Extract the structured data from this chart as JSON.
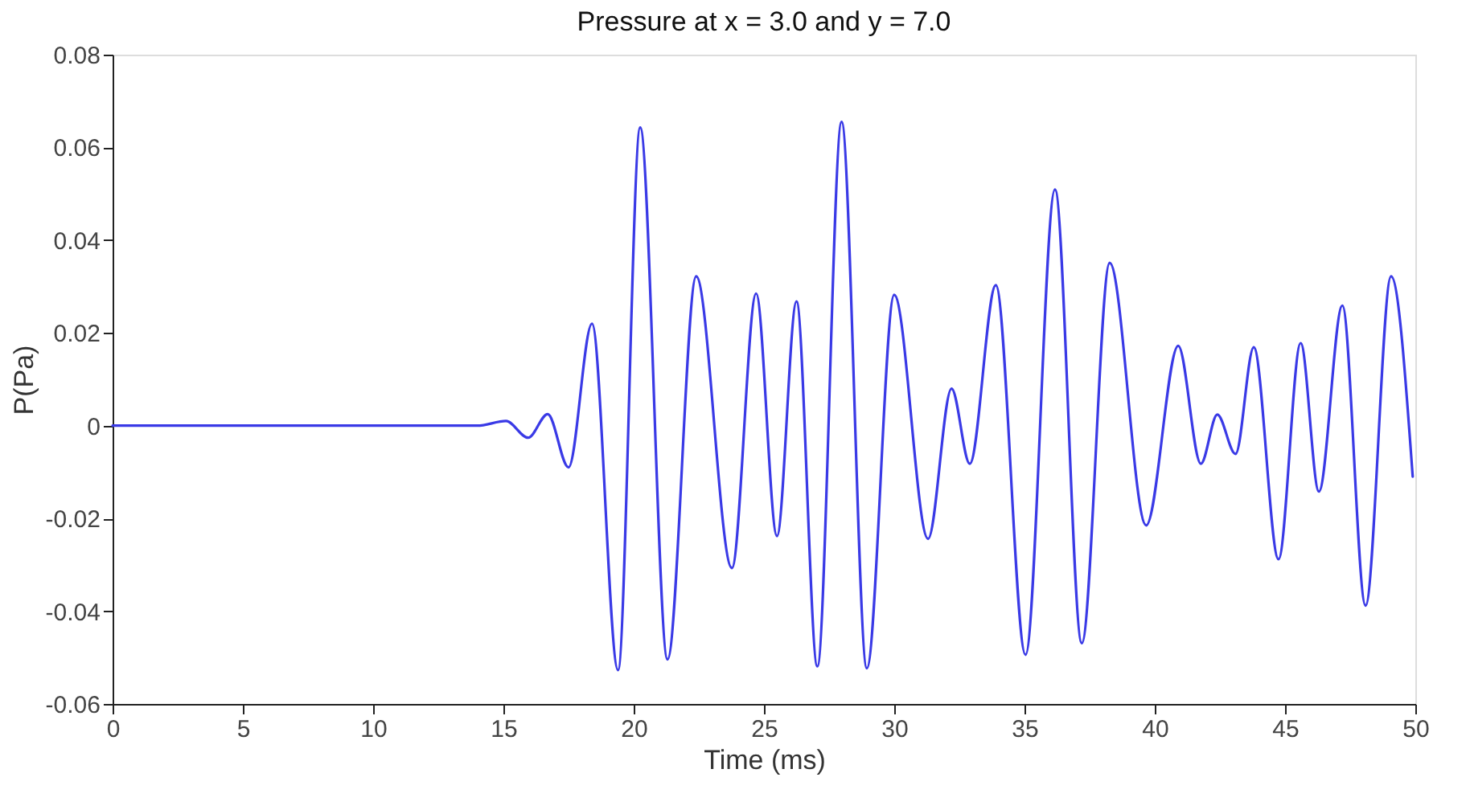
{
  "chart_data": {
    "type": "line",
    "title": "Pressure at x =  3.0 and y =  7.0",
    "xlabel": "Time (ms)",
    "ylabel": "P(Pa)",
    "xlim": [
      0,
      50
    ],
    "ylim": [
      -0.06,
      0.08
    ],
    "xticks": [
      0,
      5,
      10,
      15,
      20,
      25,
      30,
      35,
      40,
      45,
      50
    ],
    "yticks": [
      -0.06,
      -0.04,
      -0.02,
      0,
      0.02,
      0.04,
      0.06,
      0.08
    ],
    "grid": false,
    "marker": "none",
    "line_style": "solid",
    "series": [
      {
        "color": "#3a3ae6",
        "x": [
          0,
          13,
          14,
          15.1,
          15.95,
          16.7,
          17.5,
          18.4,
          19.4,
          20.25,
          21.3,
          22.4,
          23.77,
          24.7,
          25.5,
          26.25,
          27.05,
          27.98,
          28.95,
          30.0,
          31.3,
          32.2,
          32.9,
          33.9,
          35.04,
          36.17,
          37.2,
          38.27,
          39.67,
          40.9,
          41.77,
          42.4,
          43.1,
          43.8,
          44.75,
          45.6,
          46.3,
          47.2,
          48.09,
          49.07,
          49.9
        ],
        "values": [
          0,
          0,
          0,
          0.001,
          -0.0026,
          0.0025,
          -0.009,
          0.022,
          -0.0527,
          0.0643,
          -0.0504,
          0.0322,
          -0.0307,
          0.0285,
          -0.0238,
          0.0268,
          -0.0519,
          0.0655,
          -0.0523,
          0.0282,
          -0.0244,
          0.008,
          -0.0082,
          0.0303,
          -0.0494,
          0.0509,
          -0.0469,
          0.0351,
          -0.0215,
          0.0172,
          -0.0082,
          0.0024,
          -0.0061,
          0.0169,
          -0.0288,
          0.0178,
          -0.0142,
          0.0259,
          -0.0388,
          0.0322,
          -0.011
        ]
      }
    ]
  }
}
